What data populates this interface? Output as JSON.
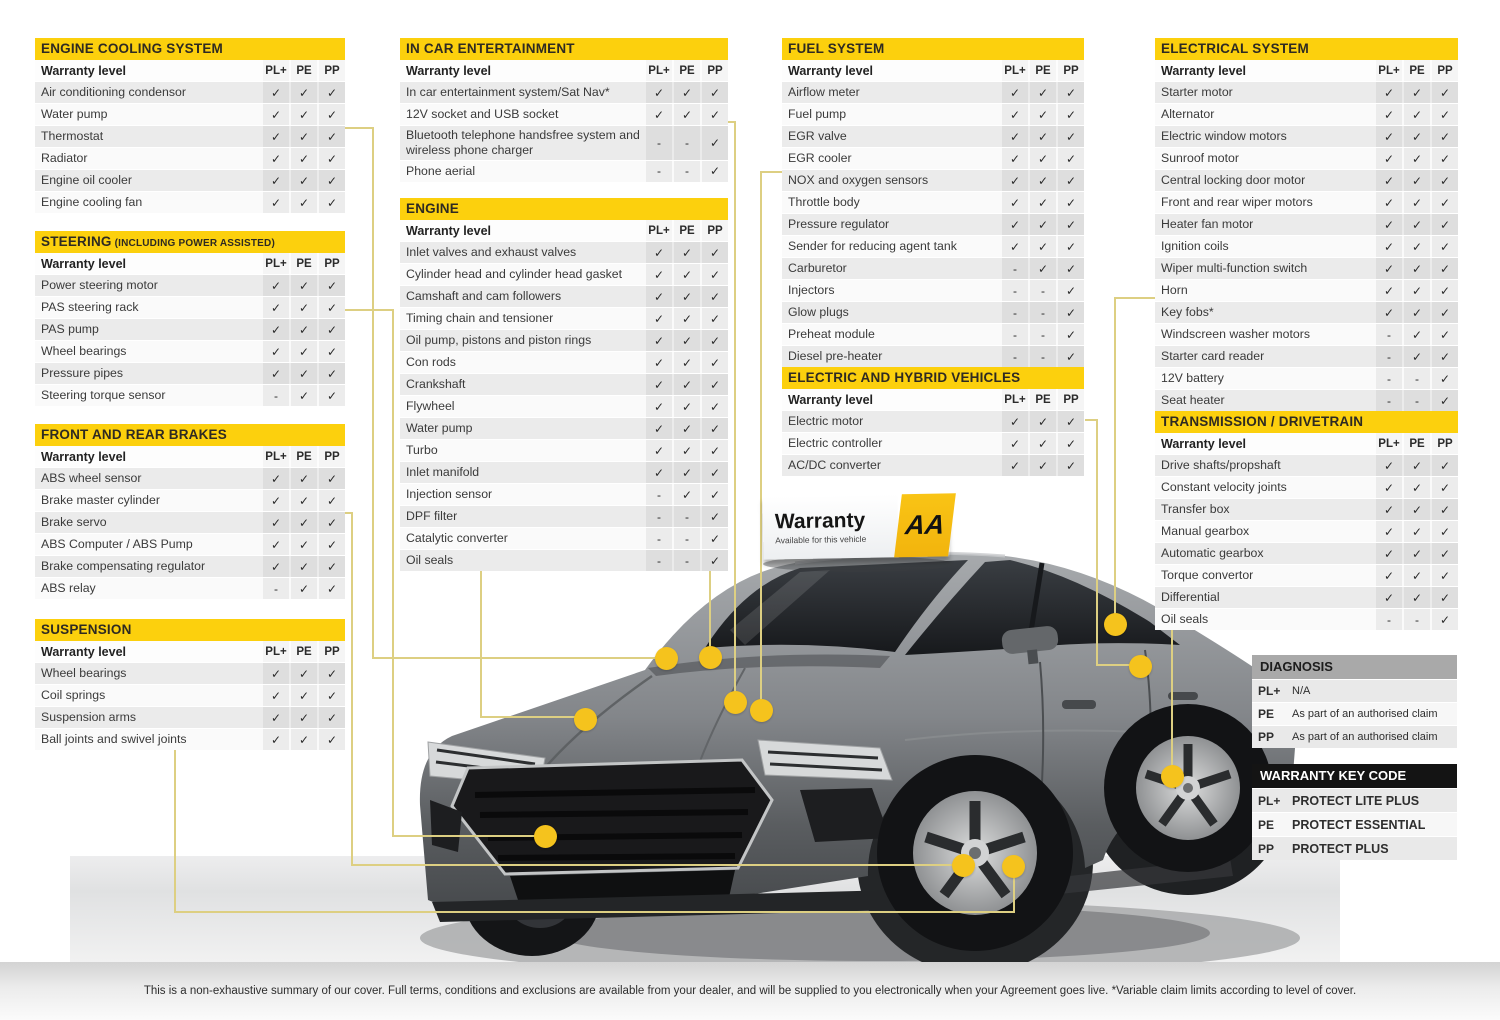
{
  "colors": {
    "accent_yellow": "#fcd00d",
    "dot_yellow": "#f5c31d",
    "line_yellow": "#ddcf82",
    "keycode_header_bg": "#141414",
    "diagnosis_header_bg": "#a9a9a9"
  },
  "columns": {
    "level": "Warranty level",
    "codes": [
      "PL+",
      "PE",
      "PP"
    ]
  },
  "tables": [
    {
      "id": "engine-cooling",
      "title": "ENGINE COOLING SYSTEM",
      "suffix": "",
      "rows": [
        {
          "label": "Air conditioning condensor",
          "marks": [
            "✓",
            "✓",
            "✓"
          ]
        },
        {
          "label": "Water pump",
          "marks": [
            "✓",
            "✓",
            "✓"
          ]
        },
        {
          "label": "Thermostat",
          "marks": [
            "✓",
            "✓",
            "✓"
          ]
        },
        {
          "label": "Radiator",
          "marks": [
            "✓",
            "✓",
            "✓"
          ]
        },
        {
          "label": "Engine oil cooler",
          "marks": [
            "✓",
            "✓",
            "✓"
          ]
        },
        {
          "label": "Engine cooling fan",
          "marks": [
            "✓",
            "✓",
            "✓"
          ]
        }
      ]
    },
    {
      "id": "steering",
      "title": "STEERING",
      "suffix": "(INCLUDING POWER ASSISTED)",
      "rows": [
        {
          "label": "Power steering motor",
          "marks": [
            "✓",
            "✓",
            "✓"
          ]
        },
        {
          "label": "PAS steering rack",
          "marks": [
            "✓",
            "✓",
            "✓"
          ]
        },
        {
          "label": "PAS pump",
          "marks": [
            "✓",
            "✓",
            "✓"
          ]
        },
        {
          "label": "Wheel bearings",
          "marks": [
            "✓",
            "✓",
            "✓"
          ]
        },
        {
          "label": "Pressure pipes",
          "marks": [
            "✓",
            "✓",
            "✓"
          ]
        },
        {
          "label": "Steering torque sensor",
          "marks": [
            "-",
            "✓",
            "✓"
          ]
        }
      ]
    },
    {
      "id": "brakes",
      "title": "FRONT AND REAR BRAKES",
      "suffix": "",
      "rows": [
        {
          "label": "ABS wheel sensor",
          "marks": [
            "✓",
            "✓",
            "✓"
          ]
        },
        {
          "label": "Brake master cylinder",
          "marks": [
            "✓",
            "✓",
            "✓"
          ]
        },
        {
          "label": "Brake servo",
          "marks": [
            "✓",
            "✓",
            "✓"
          ]
        },
        {
          "label": "ABS Computer / ABS Pump",
          "marks": [
            "✓",
            "✓",
            "✓"
          ]
        },
        {
          "label": "Brake compensating regulator",
          "marks": [
            "✓",
            "✓",
            "✓"
          ]
        },
        {
          "label": "ABS relay",
          "marks": [
            "-",
            "✓",
            "✓"
          ]
        }
      ]
    },
    {
      "id": "suspension",
      "title": "SUSPENSION",
      "suffix": "",
      "rows": [
        {
          "label": "Wheel bearings",
          "marks": [
            "✓",
            "✓",
            "✓"
          ]
        },
        {
          "label": "Coil springs",
          "marks": [
            "✓",
            "✓",
            "✓"
          ]
        },
        {
          "label": "Suspension arms",
          "marks": [
            "✓",
            "✓",
            "✓"
          ]
        },
        {
          "label": "Ball joints and swivel joints",
          "marks": [
            "✓",
            "✓",
            "✓"
          ]
        }
      ]
    },
    {
      "id": "ice",
      "title": "IN CAR ENTERTAINMENT",
      "suffix": "",
      "rows": [
        {
          "label": "In car entertainment system/Sat Nav*",
          "marks": [
            "✓",
            "✓",
            "✓"
          ]
        },
        {
          "label": "12V socket and USB socket",
          "marks": [
            "✓",
            "✓",
            "✓"
          ]
        },
        {
          "label": "Bluetooth telephone handsfree system and wireless phone charger",
          "marks": [
            "-",
            "-",
            "✓"
          ]
        },
        {
          "label": "Phone aerial",
          "marks": [
            "-",
            "-",
            "✓"
          ]
        }
      ]
    },
    {
      "id": "engine",
      "title": "ENGINE",
      "suffix": "",
      "rows": [
        {
          "label": "Inlet valves and exhaust valves",
          "marks": [
            "✓",
            "✓",
            "✓"
          ]
        },
        {
          "label": "Cylinder head and cylinder head gasket",
          "marks": [
            "✓",
            "✓",
            "✓"
          ]
        },
        {
          "label": "Camshaft and cam followers",
          "marks": [
            "✓",
            "✓",
            "✓"
          ]
        },
        {
          "label": "Timing chain and tensioner",
          "marks": [
            "✓",
            "✓",
            "✓"
          ]
        },
        {
          "label": "Oil pump, pistons and piston rings",
          "marks": [
            "✓",
            "✓",
            "✓"
          ]
        },
        {
          "label": "Con rods",
          "marks": [
            "✓",
            "✓",
            "✓"
          ]
        },
        {
          "label": "Crankshaft",
          "marks": [
            "✓",
            "✓",
            "✓"
          ]
        },
        {
          "label": "Flywheel",
          "marks": [
            "✓",
            "✓",
            "✓"
          ]
        },
        {
          "label": "Water pump",
          "marks": [
            "✓",
            "✓",
            "✓"
          ]
        },
        {
          "label": "Turbo",
          "marks": [
            "✓",
            "✓",
            "✓"
          ]
        },
        {
          "label": "Inlet manifold",
          "marks": [
            "✓",
            "✓",
            "✓"
          ]
        },
        {
          "label": "Injection sensor",
          "marks": [
            "-",
            "✓",
            "✓"
          ]
        },
        {
          "label": "DPF filter",
          "marks": [
            "-",
            "-",
            "✓"
          ]
        },
        {
          "label": "Catalytic converter",
          "marks": [
            "-",
            "-",
            "✓"
          ]
        },
        {
          "label": "Oil seals",
          "marks": [
            "-",
            "-",
            "✓"
          ]
        }
      ]
    },
    {
      "id": "fuel",
      "title": "FUEL SYSTEM",
      "suffix": "",
      "rows": [
        {
          "label": "Airflow meter",
          "marks": [
            "✓",
            "✓",
            "✓"
          ]
        },
        {
          "label": "Fuel pump",
          "marks": [
            "✓",
            "✓",
            "✓"
          ]
        },
        {
          "label": "EGR valve",
          "marks": [
            "✓",
            "✓",
            "✓"
          ]
        },
        {
          "label": "EGR cooler",
          "marks": [
            "✓",
            "✓",
            "✓"
          ]
        },
        {
          "label": "NOX and oxygen sensors",
          "marks": [
            "✓",
            "✓",
            "✓"
          ]
        },
        {
          "label": "Throttle body",
          "marks": [
            "✓",
            "✓",
            "✓"
          ]
        },
        {
          "label": "Pressure regulator",
          "marks": [
            "✓",
            "✓",
            "✓"
          ]
        },
        {
          "label": "Sender for reducing agent tank",
          "marks": [
            "✓",
            "✓",
            "✓"
          ]
        },
        {
          "label": "Carburetor",
          "marks": [
            "-",
            "✓",
            "✓"
          ]
        },
        {
          "label": "Injectors",
          "marks": [
            "-",
            "-",
            "✓"
          ]
        },
        {
          "label": "Glow plugs",
          "marks": [
            "-",
            "-",
            "✓"
          ]
        },
        {
          "label": "Preheat module",
          "marks": [
            "-",
            "-",
            "✓"
          ]
        },
        {
          "label": "Diesel pre-heater",
          "marks": [
            "-",
            "-",
            "✓"
          ]
        }
      ]
    },
    {
      "id": "electric-hybrid",
      "title": "ELECTRIC AND HYBRID VEHICLES",
      "suffix": "",
      "rows": [
        {
          "label": "Electric motor",
          "marks": [
            "✓",
            "✓",
            "✓"
          ]
        },
        {
          "label": "Electric controller",
          "marks": [
            "✓",
            "✓",
            "✓"
          ]
        },
        {
          "label": "AC/DC converter",
          "marks": [
            "✓",
            "✓",
            "✓"
          ]
        }
      ]
    },
    {
      "id": "electrical",
      "title": "ELECTRICAL SYSTEM",
      "suffix": "",
      "rows": [
        {
          "label": "Starter motor",
          "marks": [
            "✓",
            "✓",
            "✓"
          ]
        },
        {
          "label": "Alternator",
          "marks": [
            "✓",
            "✓",
            "✓"
          ]
        },
        {
          "label": "Electric window motors",
          "marks": [
            "✓",
            "✓",
            "✓"
          ]
        },
        {
          "label": "Sunroof motor",
          "marks": [
            "✓",
            "✓",
            "✓"
          ]
        },
        {
          "label": "Central locking door motor",
          "marks": [
            "✓",
            "✓",
            "✓"
          ]
        },
        {
          "label": "Front and rear wiper motors",
          "marks": [
            "✓",
            "✓",
            "✓"
          ]
        },
        {
          "label": "Heater fan motor",
          "marks": [
            "✓",
            "✓",
            "✓"
          ]
        },
        {
          "label": "Ignition coils",
          "marks": [
            "✓",
            "✓",
            "✓"
          ]
        },
        {
          "label": "Wiper multi-function switch",
          "marks": [
            "✓",
            "✓",
            "✓"
          ]
        },
        {
          "label": "Horn",
          "marks": [
            "✓",
            "✓",
            "✓"
          ]
        },
        {
          "label": "Key fobs*",
          "marks": [
            "✓",
            "✓",
            "✓"
          ]
        },
        {
          "label": "Windscreen washer motors",
          "marks": [
            "-",
            "✓",
            "✓"
          ]
        },
        {
          "label": "Starter card reader",
          "marks": [
            "-",
            "✓",
            "✓"
          ]
        },
        {
          "label": "12V battery",
          "marks": [
            "-",
            "-",
            "✓"
          ]
        },
        {
          "label": "Seat heater",
          "marks": [
            "-",
            "-",
            "✓"
          ]
        }
      ]
    },
    {
      "id": "transmission",
      "title": "TRANSMISSION / DRIVETRAIN",
      "suffix": "",
      "rows": [
        {
          "label": "Drive shafts/propshaft",
          "marks": [
            "✓",
            "✓",
            "✓"
          ]
        },
        {
          "label": "Constant velocity joints",
          "marks": [
            "✓",
            "✓",
            "✓"
          ]
        },
        {
          "label": "Transfer box",
          "marks": [
            "✓",
            "✓",
            "✓"
          ]
        },
        {
          "label": "Manual gearbox",
          "marks": [
            "✓",
            "✓",
            "✓"
          ]
        },
        {
          "label": "Automatic gearbox",
          "marks": [
            "✓",
            "✓",
            "✓"
          ]
        },
        {
          "label": "Torque convertor",
          "marks": [
            "✓",
            "✓",
            "✓"
          ]
        },
        {
          "label": "Differential",
          "marks": [
            "✓",
            "✓",
            "✓"
          ]
        },
        {
          "label": "Oil seals",
          "marks": [
            "-",
            "-",
            "✓"
          ]
        }
      ]
    }
  ],
  "diagnosis": {
    "title": "DIAGNOSIS",
    "rows": [
      [
        "PL+",
        "N/A"
      ],
      [
        "PE",
        "As part of an authorised claim"
      ],
      [
        "PP",
        "As part of an authorised claim"
      ]
    ]
  },
  "key_code": {
    "title": "WARRANTY KEY CODE",
    "rows": [
      [
        "PL+",
        "PROTECT LITE PLUS"
      ],
      [
        "PE",
        "PROTECT ESSENTIAL"
      ],
      [
        "PP",
        "PROTECT PLUS"
      ]
    ]
  },
  "badge": {
    "title": "Warranty",
    "subtitle": "Available for this vehicle",
    "logo": "AA"
  },
  "footer": {
    "disclaimer": "This is a non-exhaustive summary of our cover. Full terms, conditions and exclusions are available from your dealer, and will be supplied to you electronically when your Agreement goes live. *Variable claim limits according to level of cover."
  }
}
